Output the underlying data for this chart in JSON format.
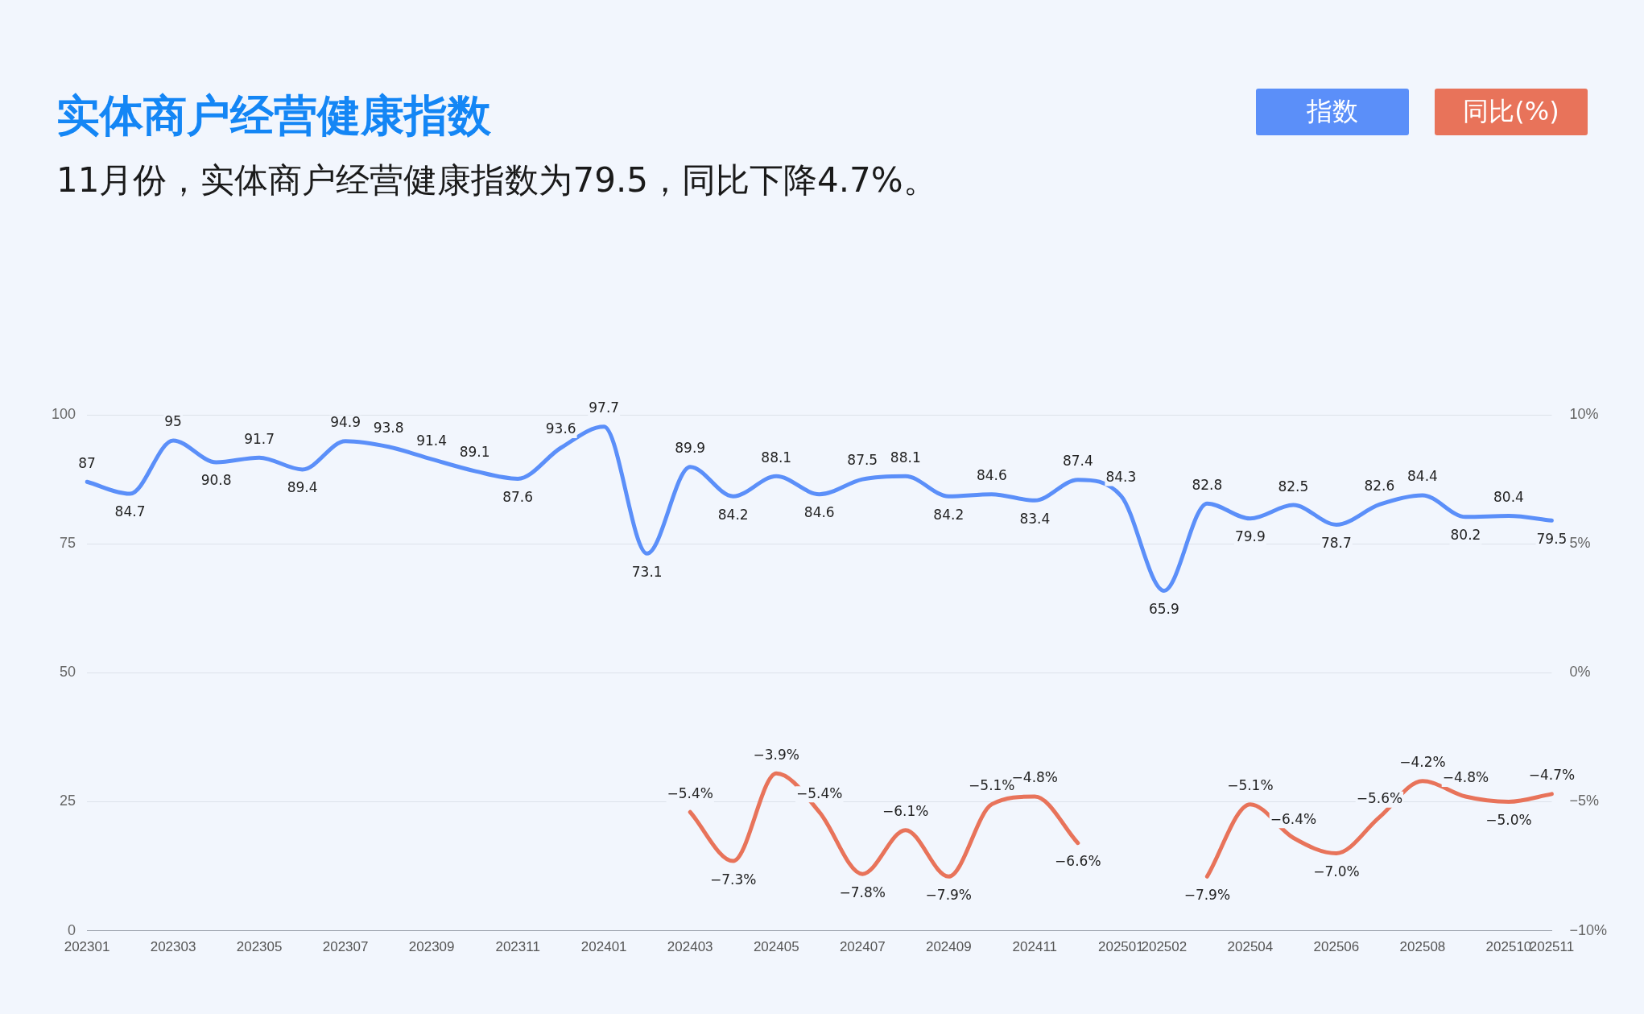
{
  "chart_data": {
    "type": "line",
    "title": "实体商户经营健康指数",
    "subtitle": "11月份，实体商户经营健康指数为79.5，同比下降4.7%。",
    "categories": [
      "202301",
      null,
      "202303",
      null,
      "202305",
      null,
      "202307",
      null,
      "202309",
      null,
      "202311",
      null,
      "202401",
      null,
      "202403",
      null,
      "202405",
      null,
      "202407",
      null,
      "202409",
      null,
      "202411",
      null,
      "202501",
      "202502",
      null,
      "202504",
      null,
      "202506",
      null,
      "202508",
      null,
      "202510",
      "202511"
    ],
    "series": [
      {
        "name": "指数",
        "color": "#5b8ff9",
        "values": [
          87,
          84.7,
          95,
          90.8,
          91.7,
          89.4,
          94.9,
          93.8,
          91.4,
          89.1,
          87.6,
          93.6,
          97.7,
          73.1,
          89.9,
          84.2,
          88.1,
          84.6,
          87.5,
          88.1,
          84.2,
          84.6,
          83.4,
          87.4,
          84.3,
          65.9,
          82.8,
          79.9,
          82.5,
          78.7,
          82.6,
          84.4,
          80.2,
          80.4,
          79.5
        ]
      },
      {
        "name": "同比(%)",
        "color": "#e8735a",
        "axis": "y2",
        "values": [
          null,
          null,
          null,
          null,
          null,
          null,
          null,
          null,
          null,
          null,
          null,
          null,
          null,
          null,
          -5.4,
          -7.3,
          -3.9,
          -5.4,
          -7.8,
          -6.1,
          -7.9,
          -5.1,
          -4.8,
          -6.6,
          null,
          null,
          -7.9,
          -5.1,
          -6.4,
          -7.0,
          -5.6,
          -4.2,
          -4.8,
          -5.0,
          -4.7
        ],
        "value_labels": [
          null,
          null,
          null,
          null,
          null,
          null,
          null,
          null,
          null,
          null,
          null,
          null,
          null,
          null,
          "−5.4%",
          "−7.3%",
          "−3.9%",
          "−5.4%",
          "−7.8%",
          "−6.1%",
          "−7.9%",
          "−5.1%",
          "−4.8%",
          "−6.6%",
          null,
          null,
          "−7.9%",
          "−5.1%",
          "−6.4%",
          "−7.0%",
          "−5.6%",
          "−4.2%",
          "−4.8%",
          "−5.0%",
          "−4.7%"
        ]
      }
    ],
    "ylim": [
      0,
      100
    ],
    "yticks": [
      0,
      25,
      50,
      75,
      100
    ],
    "y2lim": [
      -10,
      10
    ],
    "y2ticks": [
      {
        "value": -10,
        "label": "−10%"
      },
      {
        "value": -5,
        "label": "−5%"
      },
      {
        "value": 0,
        "label": "0%"
      },
      {
        "value": 5,
        "label": "5%"
      },
      {
        "value": 10,
        "label": "10%"
      }
    ],
    "grid": "y",
    "legend": "top right",
    "data_labels": true,
    "marker": "none"
  }
}
